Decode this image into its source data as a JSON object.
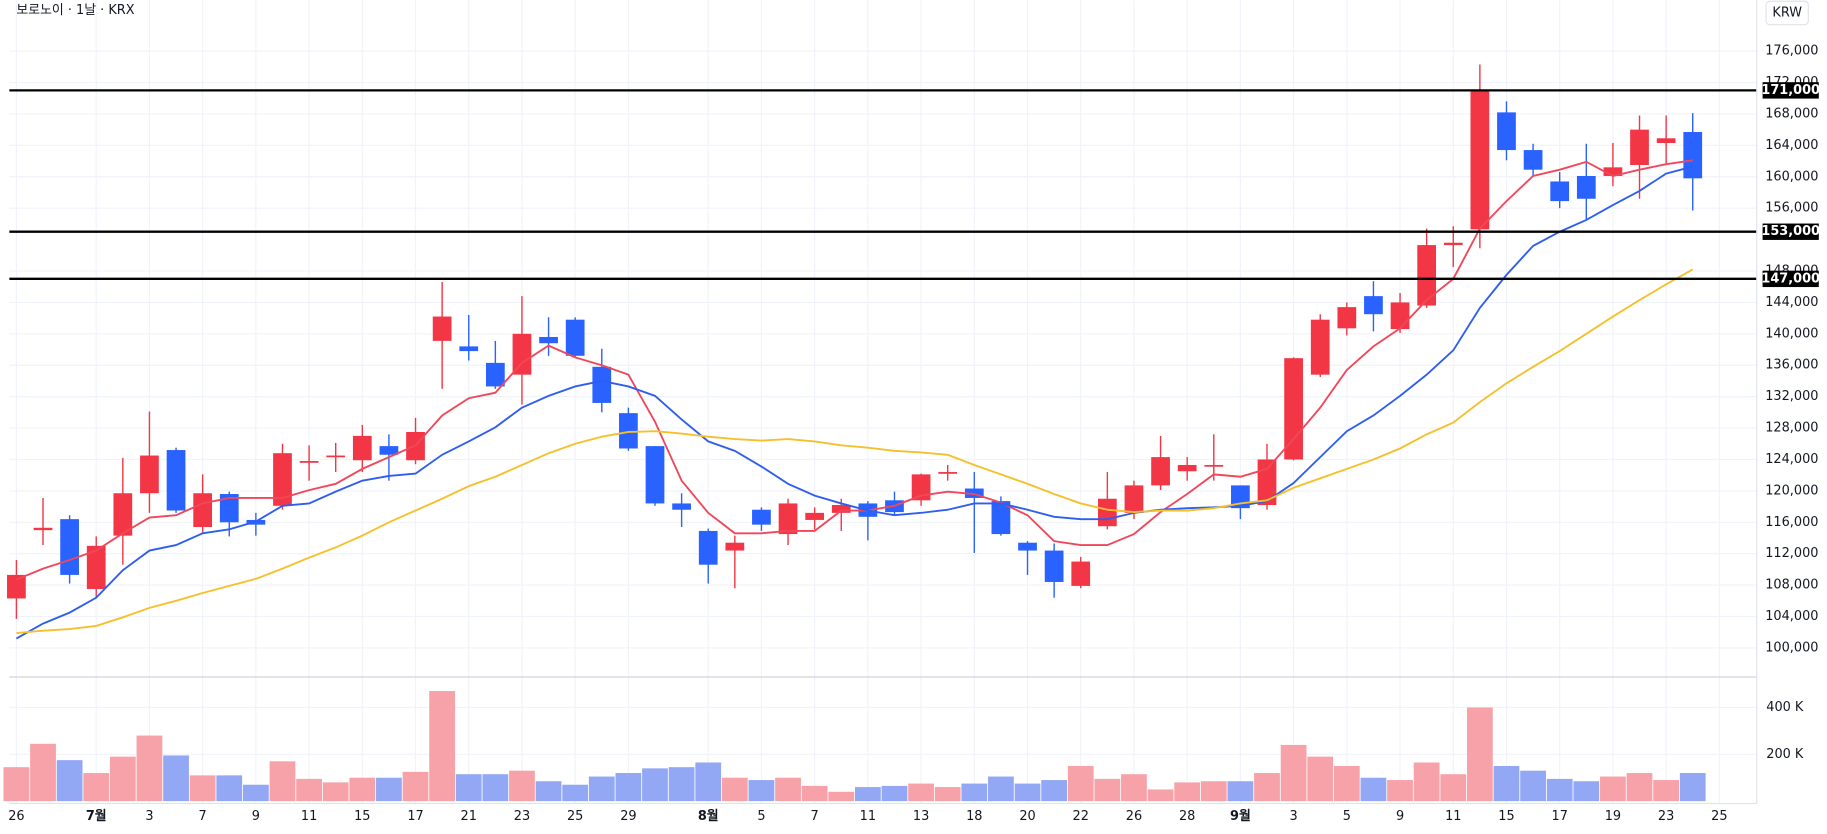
{
  "header": {
    "title": "보로노이 · 1날 · KRX",
    "currency": "KRW"
  },
  "chart_data": {
    "type": "candlestick",
    "categories": [
      "26",
      null,
      null,
      "7월",
      null,
      "3",
      null,
      "7",
      null,
      "9",
      null,
      "11",
      null,
      "15",
      null,
      "17",
      null,
      "21",
      null,
      "23",
      null,
      "25",
      null,
      "29",
      null,
      null,
      "8월",
      null,
      "5",
      null,
      "7",
      null,
      "11",
      null,
      "13",
      null,
      "18",
      null,
      "20",
      null,
      "22",
      null,
      "26",
      null,
      "28",
      null,
      "9월",
      null,
      "3",
      null,
      "5",
      null,
      "9",
      null,
      "11",
      null,
      "15",
      null,
      "17",
      null,
      "19",
      null,
      "23",
      null,
      "25"
    ],
    "open": [
      106300,
      115000,
      116400,
      107500,
      114300,
      119700,
      125200,
      115400,
      119600,
      116300,
      118100,
      123600,
      124300,
      123900,
      125700,
      123900,
      139100,
      138400,
      136300,
      134800,
      139600,
      141800,
      135800,
      129900,
      125700,
      118400,
      114900,
      112400,
      117600,
      114500,
      116300,
      117200,
      118400,
      118800,
      118800,
      122300,
      120300,
      118700,
      113400,
      112400,
      107900,
      115500,
      117200,
      120700,
      122500,
      123200,
      120700,
      118200,
      124000,
      134800,
      140700,
      144800,
      140600,
      143600,
      151300,
      153300,
      168200,
      163400,
      159400,
      160100,
      160100,
      161500,
      164300,
      165700,
      null
    ],
    "high": [
      111200,
      119100,
      116900,
      114200,
      124200,
      130100,
      125500,
      122100,
      119900,
      117200,
      126000,
      125800,
      126100,
      128400,
      127200,
      129300,
      146600,
      142400,
      139100,
      144800,
      142100,
      142100,
      138100,
      130600,
      125700,
      119700,
      115200,
      114300,
      117900,
      119000,
      117900,
      119000,
      118700,
      119900,
      122200,
      123300,
      122400,
      119300,
      113600,
      113300,
      111600,
      122400,
      121300,
      127000,
      124300,
      127200,
      120700,
      126000,
      137000,
      142500,
      144000,
      146700,
      145200,
      153400,
      153700,
      174300,
      169600,
      164200,
      160600,
      164200,
      164300,
      167800,
      167800,
      168100,
      null
    ],
    "low": [
      103700,
      113100,
      108200,
      106400,
      110600,
      117200,
      117200,
      114600,
      114200,
      114300,
      117600,
      121300,
      122400,
      122400,
      121300,
      123400,
      133000,
      136600,
      133000,
      131000,
      137200,
      137000,
      130000,
      125100,
      118100,
      115400,
      108200,
      107600,
      114900,
      113100,
      115100,
      114900,
      113700,
      116900,
      118100,
      121300,
      112100,
      114300,
      109300,
      106400,
      107600,
      115100,
      116400,
      120100,
      121300,
      121300,
      116400,
      117600,
      123900,
      134500,
      139800,
      140300,
      140100,
      143300,
      148500,
      150900,
      162100,
      160000,
      156000,
      154500,
      158800,
      157200,
      161600,
      155700,
      null
    ],
    "close": [
      109300,
      115300,
      109300,
      113000,
      119700,
      124500,
      117500,
      119700,
      116000,
      115700,
      124800,
      123800,
      124500,
      127000,
      124600,
      127500,
      142200,
      137800,
      133300,
      140000,
      138800,
      137200,
      131200,
      125400,
      118400,
      117600,
      110600,
      113400,
      115700,
      118400,
      117200,
      118200,
      116700,
      117300,
      122100,
      122400,
      119100,
      114500,
      112400,
      108400,
      111000,
      119000,
      120700,
      124300,
      123300,
      123300,
      117800,
      124000,
      136900,
      141800,
      143400,
      142500,
      144000,
      151300,
      151600,
      170900,
      163400,
      160900,
      156900,
      157200,
      161200,
      166000,
      164900,
      159800,
      null
    ],
    "up_color": "#f23645",
    "down_color": "#2962ff",
    "moving_averages": [
      {
        "color": "#f0485a",
        "values": [
          108700,
          110100,
          111200,
          112400,
          114600,
          116600,
          116900,
          118400,
          119100,
          119100,
          119100,
          120100,
          120900,
          122800,
          124300,
          125800,
          129600,
          131800,
          132500,
          136300,
          138500,
          137000,
          136000,
          134800,
          128800,
          121300,
          117200,
          114600,
          114600,
          114900,
          114900,
          117500,
          117500,
          118100,
          119400,
          119900,
          119600,
          118500,
          116900,
          113600,
          113100,
          113100,
          114500,
          117300,
          119600,
          122100,
          121800,
          122800,
          126600,
          130600,
          135400,
          138400,
          140700,
          144300,
          147000,
          153400,
          156900,
          160100,
          160900,
          161900,
          160100,
          160900,
          161600,
          162100,
          null
        ]
      },
      {
        "color": "#2e5ef0",
        "values": [
          101200,
          103100,
          104500,
          106400,
          109900,
          112400,
          113100,
          114600,
          115100,
          116100,
          118100,
          118400,
          119900,
          121300,
          121900,
          122200,
          124600,
          126300,
          128100,
          130600,
          132100,
          133300,
          134000,
          133300,
          132100,
          129100,
          126300,
          125100,
          123100,
          120900,
          119400,
          118400,
          117500,
          116900,
          117200,
          117600,
          118400,
          118400,
          117600,
          116700,
          116400,
          116400,
          117200,
          117600,
          117800,
          117900,
          118100,
          118700,
          121000,
          124300,
          127600,
          129600,
          132100,
          134800,
          137900,
          143300,
          147500,
          151200,
          153000,
          154500,
          156400,
          158200,
          160400,
          161300,
          null
        ]
      },
      {
        "color": "#f5c02c",
        "values": [
          101900,
          102200,
          102400,
          102800,
          103900,
          105100,
          106000,
          107000,
          107900,
          108800,
          110100,
          111500,
          112800,
          114300,
          116000,
          117500,
          119000,
          120600,
          121800,
          123300,
          124800,
          126000,
          126900,
          127500,
          127600,
          127300,
          126900,
          126600,
          126400,
          126600,
          126300,
          125800,
          125500,
          125100,
          124900,
          124600,
          123300,
          122100,
          120900,
          119600,
          118400,
          117600,
          117300,
          117500,
          117500,
          117800,
          118400,
          118800,
          120400,
          121600,
          122800,
          124000,
          125400,
          127200,
          128700,
          131300,
          133700,
          135800,
          137800,
          140000,
          142200,
          144300,
          146300,
          148200,
          null
        ]
      }
    ],
    "ylim": [
      96300,
      182500
    ],
    "yticks": [
      {
        "value": 100000,
        "label": "100,000"
      },
      {
        "value": 104000,
        "label": "104,000"
      },
      {
        "value": 108000,
        "label": "108,000"
      },
      {
        "value": 112000,
        "label": "112,000"
      },
      {
        "value": 116000,
        "label": "116,000"
      },
      {
        "value": 120000,
        "label": "120,000"
      },
      {
        "value": 124000,
        "label": "124,000"
      },
      {
        "value": 128000,
        "label": "128,000"
      },
      {
        "value": 132000,
        "label": "132,000"
      },
      {
        "value": 136000,
        "label": "136,000"
      },
      {
        "value": 140000,
        "label": "140,000"
      },
      {
        "value": 144000,
        "label": "144,000"
      },
      {
        "value": 148000,
        "label": "148,000"
      },
      {
        "value": 156000,
        "label": "156,000"
      },
      {
        "value": 160000,
        "label": "160,000"
      },
      {
        "value": 164000,
        "label": "164,000"
      },
      {
        "value": 168000,
        "label": "168,000"
      },
      {
        "value": 172000,
        "label": "172,000"
      },
      {
        "value": 176000,
        "label": "176,000"
      }
    ],
    "levels": [
      {
        "value": 171000,
        "label": "171,000"
      },
      {
        "value": 153000,
        "label": "153,000"
      },
      {
        "value": 147000,
        "label": "147,000"
      }
    ],
    "grid": true,
    "volume": {
      "values": [
        145000,
        245000,
        175000,
        120000,
        190000,
        280000,
        195000,
        110000,
        110000,
        70000,
        170000,
        95000,
        80000,
        100000,
        100000,
        125000,
        470000,
        115000,
        115000,
        130000,
        85000,
        70000,
        105000,
        120000,
        140000,
        145000,
        165000,
        100000,
        90000,
        100000,
        65000,
        40000,
        60000,
        65000,
        75000,
        60000,
        75000,
        105000,
        75000,
        90000,
        150000,
        95000,
        115000,
        50000,
        80000,
        85000,
        85000,
        120000,
        240000,
        190000,
        150000,
        100000,
        90000,
        165000,
        115000,
        400000,
        150000,
        130000,
        95000,
        85000,
        105000,
        120000,
        90000,
        120000,
        null
      ],
      "up_color": "#f7a1a9",
      "down_color": "#92a8f4",
      "ylim": [
        0,
        530000
      ],
      "yticks": [
        {
          "value": 200000,
          "label": "200 K"
        },
        {
          "value": 400000,
          "label": "400 K"
        }
      ]
    }
  }
}
